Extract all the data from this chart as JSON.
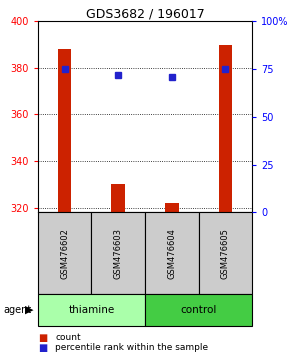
{
  "title": "GDS3682 / 196017",
  "samples": [
    "GSM476602",
    "GSM476603",
    "GSM476604",
    "GSM476605"
  ],
  "count_values": [
    388,
    330,
    322,
    390
  ],
  "percentile_values": [
    75,
    72,
    71,
    75
  ],
  "ylim_left": [
    318,
    400
  ],
  "ylim_right": [
    0,
    100
  ],
  "yticks_left": [
    320,
    340,
    360,
    380,
    400
  ],
  "yticks_right": [
    0,
    25,
    50,
    75,
    100
  ],
  "groups": [
    {
      "label": "thiamine",
      "indices": [
        0,
        1
      ],
      "color": "#aaffaa"
    },
    {
      "label": "control",
      "indices": [
        2,
        3
      ],
      "color": "#44cc44"
    }
  ],
  "bar_color": "#cc2200",
  "dot_color": "#2222cc",
  "bar_width": 0.25,
  "background_color": "#ffffff",
  "sample_box_color": "#cccccc",
  "agent_label": "agent"
}
